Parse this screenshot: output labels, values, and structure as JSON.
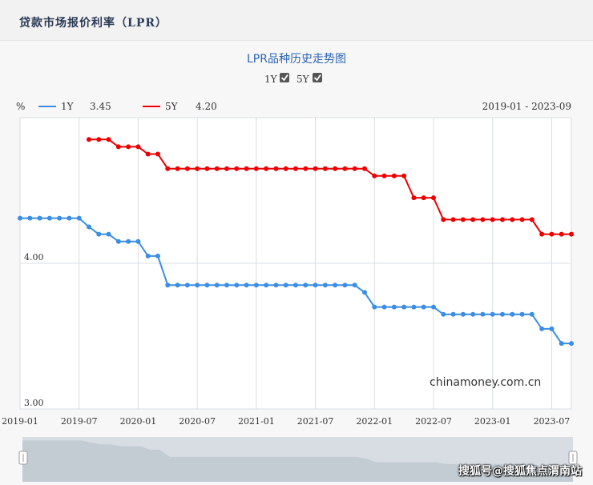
{
  "header": {
    "title": "贷款市场报价利率（LPR）"
  },
  "chart_toggles": [
    {
      "label": "1Y",
      "checked": true
    },
    {
      "label": "5Y",
      "checked": true
    }
  ],
  "date_range": "2019-01 - 2023-09",
  "watermark": "chinamoney.com.cn",
  "sohu_watermark": "搜狐号@搜狐焦点渭南站",
  "colors": {
    "series_1y": "#3b8ee5",
    "series_5y": "#ee0000",
    "title": "#2b63b5"
  },
  "chart_data": {
    "type": "line",
    "title": "LPR品种历史走势图",
    "ylabel": "%",
    "ylim": [
      3.0,
      5.0
    ],
    "yticks": [
      "4.00",
      "3.00"
    ],
    "xticks": [
      "2019-01",
      "2019-07",
      "2020-01",
      "2020-07",
      "2021-01",
      "2021-07",
      "2022-01",
      "2022-07",
      "2023-01",
      "2023-07"
    ],
    "x_start": "2019-01",
    "x_end": "2023-09",
    "grid": true,
    "legend_position": "top-left",
    "series": [
      {
        "name": "1Y",
        "latest": "3.45",
        "color": "#3b8ee5",
        "x": [
          "2019-01",
          "2019-02",
          "2019-03",
          "2019-04",
          "2019-05",
          "2019-06",
          "2019-07",
          "2019-08",
          "2019-09",
          "2019-10",
          "2019-11",
          "2019-12",
          "2020-01",
          "2020-02",
          "2020-03",
          "2020-04",
          "2020-05",
          "2020-06",
          "2020-07",
          "2020-08",
          "2020-09",
          "2020-10",
          "2020-11",
          "2020-12",
          "2021-01",
          "2021-02",
          "2021-03",
          "2021-04",
          "2021-05",
          "2021-06",
          "2021-07",
          "2021-08",
          "2021-09",
          "2021-10",
          "2021-11",
          "2021-12",
          "2022-01",
          "2022-02",
          "2022-03",
          "2022-04",
          "2022-05",
          "2022-06",
          "2022-07",
          "2022-08",
          "2022-09",
          "2022-10",
          "2022-11",
          "2022-12",
          "2023-01",
          "2023-02",
          "2023-03",
          "2023-04",
          "2023-05",
          "2023-06",
          "2023-07",
          "2023-08",
          "2023-09"
        ],
        "values": [
          4.31,
          4.31,
          4.31,
          4.31,
          4.31,
          4.31,
          4.31,
          4.25,
          4.2,
          4.2,
          4.15,
          4.15,
          4.15,
          4.05,
          4.05,
          3.85,
          3.85,
          3.85,
          3.85,
          3.85,
          3.85,
          3.85,
          3.85,
          3.85,
          3.85,
          3.85,
          3.85,
          3.85,
          3.85,
          3.85,
          3.85,
          3.85,
          3.85,
          3.85,
          3.85,
          3.8,
          3.7,
          3.7,
          3.7,
          3.7,
          3.7,
          3.7,
          3.7,
          3.65,
          3.65,
          3.65,
          3.65,
          3.65,
          3.65,
          3.65,
          3.65,
          3.65,
          3.65,
          3.55,
          3.55,
          3.45,
          3.45
        ]
      },
      {
        "name": "5Y",
        "latest": "4.20",
        "color": "#ee0000",
        "x": [
          "2019-08",
          "2019-09",
          "2019-10",
          "2019-11",
          "2019-12",
          "2020-01",
          "2020-02",
          "2020-03",
          "2020-04",
          "2020-05",
          "2020-06",
          "2020-07",
          "2020-08",
          "2020-09",
          "2020-10",
          "2020-11",
          "2020-12",
          "2021-01",
          "2021-02",
          "2021-03",
          "2021-04",
          "2021-05",
          "2021-06",
          "2021-07",
          "2021-08",
          "2021-09",
          "2021-10",
          "2021-11",
          "2021-12",
          "2022-01",
          "2022-02",
          "2022-03",
          "2022-04",
          "2022-05",
          "2022-06",
          "2022-07",
          "2022-08",
          "2022-09",
          "2022-10",
          "2022-11",
          "2022-12",
          "2023-01",
          "2023-02",
          "2023-03",
          "2023-04",
          "2023-05",
          "2023-06",
          "2023-07",
          "2023-08",
          "2023-09"
        ],
        "values": [
          4.85,
          4.85,
          4.85,
          4.8,
          4.8,
          4.8,
          4.75,
          4.75,
          4.65,
          4.65,
          4.65,
          4.65,
          4.65,
          4.65,
          4.65,
          4.65,
          4.65,
          4.65,
          4.65,
          4.65,
          4.65,
          4.65,
          4.65,
          4.65,
          4.65,
          4.65,
          4.65,
          4.65,
          4.65,
          4.6,
          4.6,
          4.6,
          4.6,
          4.45,
          4.45,
          4.45,
          4.3,
          4.3,
          4.3,
          4.3,
          4.3,
          4.3,
          4.3,
          4.3,
          4.3,
          4.3,
          4.2,
          4.2,
          4.2,
          4.2
        ]
      }
    ]
  }
}
